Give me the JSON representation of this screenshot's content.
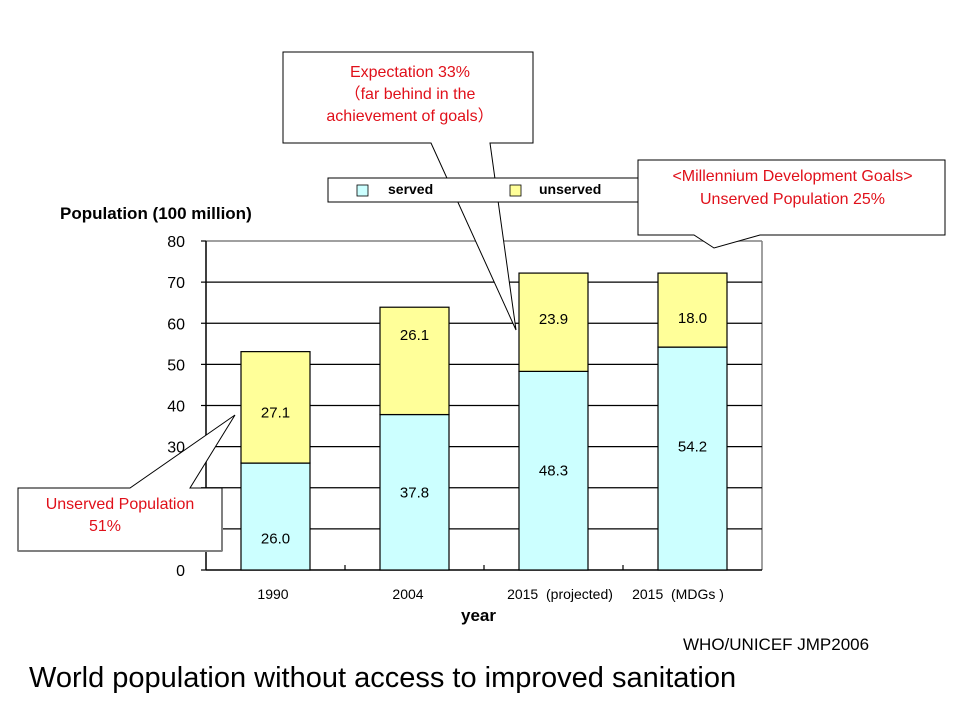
{
  "chart_data": {
    "type": "bar",
    "stacked": true,
    "title": "World population without access to improved sanitation",
    "source": "WHO/UNICEF JMP2006",
    "xlabel": "year",
    "ylabel": "Population (100 million)",
    "ylim": [
      0,
      80
    ],
    "yticks": [
      0,
      10,
      20,
      30,
      40,
      50,
      60,
      70,
      80
    ],
    "ytick_labels": [
      "0",
      "",
      "",
      "30",
      "40",
      "50",
      "60",
      "70",
      "80"
    ],
    "grid": true,
    "categories": [
      "1990",
      "2004",
      "2015  (projected)",
      "2015  (MDGs )"
    ],
    "series": [
      {
        "name": "served",
        "color": "#ccffff",
        "values": [
          26.0,
          37.8,
          48.3,
          54.2
        ],
        "labels": [
          "26.0",
          "37.8",
          "48.3",
          "54.2"
        ]
      },
      {
        "name": "unserved",
        "color": "#ffff99",
        "values": [
          27.1,
          26.1,
          23.9,
          18.0
        ],
        "labels": [
          "27.1",
          "26.1",
          "23.9",
          "18.0"
        ]
      }
    ],
    "legend": {
      "placement": "top",
      "entries": [
        "served",
        "unserved"
      ]
    },
    "annotations": [
      {
        "id": "expectation",
        "lines": [
          "Expectation  33%",
          "（far behind in the",
          "achievement of goals）"
        ],
        "points_to": "2015  (projected)"
      },
      {
        "id": "mdg",
        "lines": [
          "<Millennium Development Goals>",
          "Unserved Population 25%"
        ],
        "points_to": "2015  (MDGs )"
      },
      {
        "id": "unserved-1990",
        "lines": [
          "Unserved Population",
          "51%"
        ],
        "points_to": "1990"
      }
    ],
    "annotation_color": "#e0101a"
  }
}
